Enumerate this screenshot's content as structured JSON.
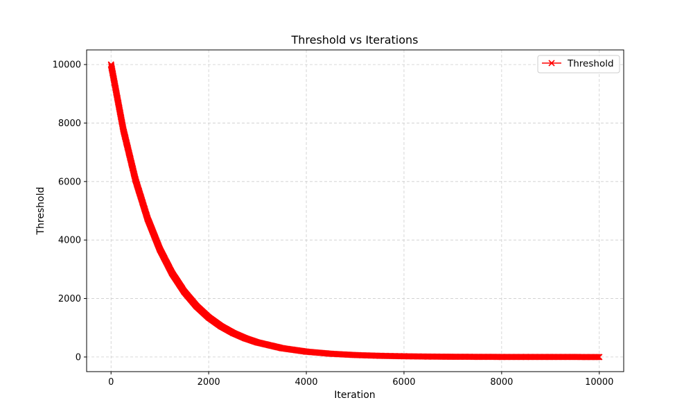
{
  "chart_data": {
    "type": "line",
    "title": "Threshold vs Iterations",
    "xlabel": "Iteration",
    "ylabel": "Threshold",
    "xlim": [
      -500,
      10500
    ],
    "ylim": [
      -500,
      10500
    ],
    "xticks": [
      0,
      2000,
      4000,
      6000,
      8000,
      10000
    ],
    "yticks": [
      0,
      2000,
      4000,
      6000,
      8000,
      10000
    ],
    "grid": true,
    "legend_position": "top-right",
    "series": [
      {
        "name": "Threshold",
        "color": "#ff0000",
        "marker": "x",
        "x": [
          0,
          250,
          500,
          750,
          1000,
          1250,
          1500,
          1750,
          2000,
          2250,
          2500,
          2750,
          3000,
          3500,
          4000,
          4500,
          5000,
          5500,
          6000,
          6500,
          7000,
          7500,
          8000,
          8500,
          9000,
          9500,
          10000
        ],
        "y": [
          10000,
          7788,
          6065,
          4724,
          3679,
          2865,
          2231,
          1738,
          1353,
          1054,
          821,
          639,
          498,
          302,
          183,
          111,
          67,
          41,
          25,
          15,
          9,
          6,
          3,
          2,
          1,
          1,
          0
        ]
      }
    ]
  }
}
